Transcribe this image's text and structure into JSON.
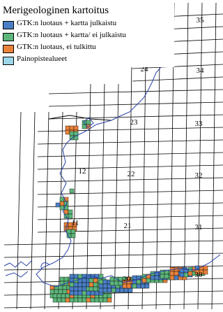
{
  "legend": {
    "title": "Merigeologinen kartoitus",
    "items": [
      {
        "label": "GTK:n luotaus + kartta julkaistu",
        "color": "#4A7FC5"
      },
      {
        "label": "GTK:n luotaus + kartta/ ei julkaistu",
        "color": "#5DB67A"
      },
      {
        "label": "GTK:n luotaus, ei tulkittu",
        "color": "#E9823B"
      },
      {
        "label": "Painopistealueet",
        "color": "#9ED7EA"
      }
    ]
  },
  "grid_labels": [
    "25",
    "35",
    "24",
    "34",
    "23",
    "33",
    "12",
    "22",
    "32",
    "11",
    "21",
    "31",
    "20",
    "30"
  ],
  "colors": {
    "coast": "#2A43A8",
    "grid": "#000000"
  }
}
